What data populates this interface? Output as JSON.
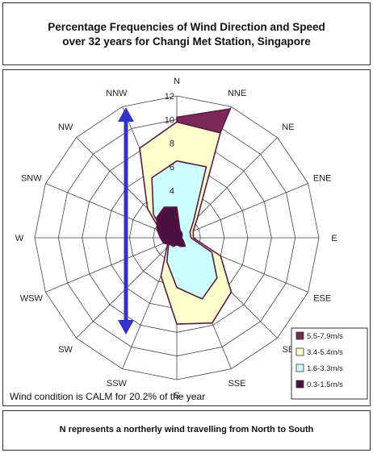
{
  "header": {
    "title_line1": "Percentage Frequencies of Wind Direction and Speed",
    "title_line2": "over 32 years for Changi Met Station, Singapore"
  },
  "footer": {
    "note": "N represents a northerly wind travelling from North to South"
  },
  "chart_data": {
    "type": "radar",
    "title": "Percentage Frequencies of Wind Direction and Speed over 32 years for Changi Met Station, Singapore",
    "directions": [
      "N",
      "NNE",
      "NE",
      "ENE",
      "E",
      "ESE",
      "SE",
      "SSE",
      "S",
      "SSW",
      "SW",
      "WSW",
      "W",
      "SNW",
      "NW",
      "NNW"
    ],
    "radial_ticks": [
      2,
      4,
      6,
      8,
      10,
      12
    ],
    "rmax": 12,
    "series": [
      {
        "name": "5.5-7.9m/s",
        "color": "#7a2a55",
        "values": [
          10.2,
          11.8,
          0,
          0,
          0,
          0,
          0,
          0,
          0,
          0,
          0,
          0,
          0,
          0,
          0,
          0
        ]
      },
      {
        "name": "3.4-5.4m/s",
        "color": "#ffffcc",
        "values": [
          9.8,
          9.6,
          2.5,
          1.5,
          1.4,
          4.0,
          6.5,
          7.8,
          7.3,
          3.5,
          1.2,
          0.8,
          0.6,
          1.5,
          3.5,
          8.2
        ]
      },
      {
        "name": "1.6-3.3m/s",
        "color": "#ccffff",
        "values": [
          6.5,
          6.5,
          2.0,
          1.2,
          1.2,
          3.2,
          4.8,
          5.6,
          4.2,
          2.2,
          1.0,
          0.6,
          0.5,
          1.2,
          2.8,
          5.5
        ]
      },
      {
        "name": "0.3-1.5m/s",
        "color": "#4d0f40",
        "values": [
          2.6,
          0.7,
          0.6,
          0.5,
          0.4,
          0.6,
          1.0,
          0.8,
          0.6,
          0.8,
          0.8,
          1.2,
          1.4,
          1.8,
          2.4,
          2.8
        ]
      }
    ],
    "legend_position": "bottom-right",
    "annotation": "Wind condition is CALM for 20.2% of the year",
    "arrow": {
      "color": "#3333cc",
      "direction": "vertical double-headed"
    }
  }
}
